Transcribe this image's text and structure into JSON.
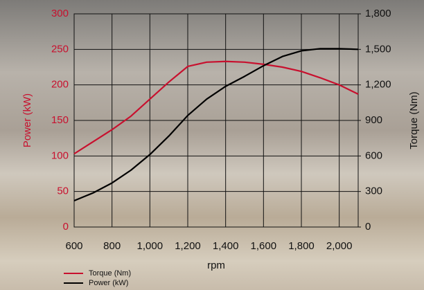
{
  "chart_data": {
    "type": "line",
    "xlabel": "rpm",
    "ylabel": "Power (kW)",
    "y2label": "Torque (Nm)",
    "x": [
      600,
      700,
      800,
      900,
      1000,
      1100,
      1200,
      1300,
      1400,
      1500,
      1600,
      1700,
      1800,
      1900,
      2000,
      2100
    ],
    "series": [
      {
        "name": "Torque (Nm)",
        "color": "#c8102e",
        "axis": "y2",
        "values": [
          618,
          720,
          822,
          936,
          1080,
          1224,
          1356,
          1392,
          1398,
          1392,
          1374,
          1350,
          1314,
          1260,
          1200,
          1122
        ]
      },
      {
        "name": "Power (kW)",
        "color": "#000000",
        "values": [
          37,
          48,
          62,
          80,
          102,
          128,
          157,
          180,
          198,
          212,
          227,
          240,
          248,
          251,
          251,
          250
        ]
      }
    ],
    "xlim": [
      600,
      2100
    ],
    "xticks": [
      600,
      800,
      {
        "value": 1000,
        "label": "1,000"
      },
      {
        "value": 1200,
        "label": "1,200"
      },
      {
        "value": 1400,
        "label": "1,400"
      },
      {
        "value": 1600,
        "label": "1,600"
      },
      {
        "value": 1800,
        "label": "1,800"
      },
      {
        "value": 2000,
        "label": "2,000"
      }
    ],
    "ylim": [
      0,
      300
    ],
    "yticks": [
      0,
      50,
      100,
      150,
      200,
      250,
      300
    ],
    "y2lim": [
      0,
      1800
    ],
    "y2ticks": [
      0,
      300,
      600,
      900,
      {
        "value": 1200,
        "label": "1,200"
      },
      {
        "value": 1500,
        "label": "1,500"
      },
      {
        "value": 1800,
        "label": "1,800"
      }
    ],
    "ytick_color": "#c8102e",
    "grid": true,
    "legend": "bottom-left"
  }
}
